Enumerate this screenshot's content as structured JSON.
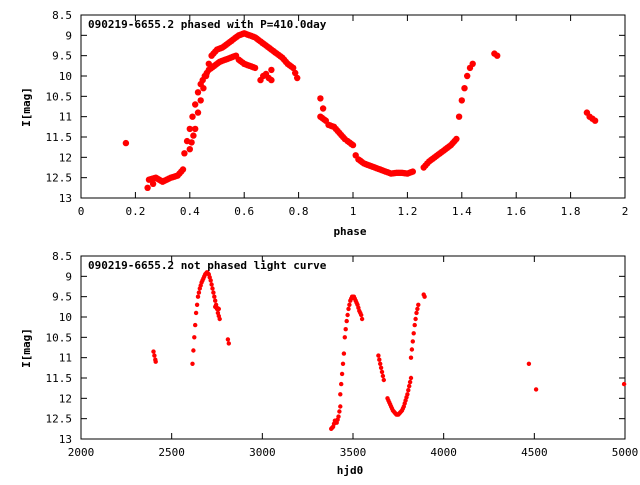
{
  "colors": {
    "points": "#ff0000",
    "axes": "#000000",
    "background": "#ffffff"
  },
  "chart_data": [
    {
      "type": "scatter",
      "title": "090219-6655.2 phased with P=410.0day",
      "xlabel": "phase",
      "ylabel": "I[mag]",
      "xlim": [
        0,
        2
      ],
      "ylim": [
        8.5,
        13
      ],
      "y_inverted": true,
      "grid": false,
      "xticks": [
        "0",
        "0.2",
        "0.4",
        "0.6",
        "0.8",
        "1",
        "1.2",
        "1.4",
        "1.6",
        "1.8",
        "2"
      ],
      "yticks": [
        "8.5",
        "9",
        "9.5",
        "10",
        "10.5",
        "11",
        "11.5",
        "12",
        "12.5",
        "13"
      ],
      "segments": [
        [
          [
            0.25,
            12.55
          ],
          [
            0.275,
            12.5
          ],
          [
            0.3,
            12.6
          ],
          [
            0.33,
            12.5
          ],
          [
            0.355,
            12.45
          ],
          [
            0.375,
            12.3
          ]
        ],
        [
          [
            0.38,
            11.9
          ],
          [
            0.39,
            11.6
          ],
          [
            0.4,
            11.3
          ],
          [
            0.41,
            11.0
          ],
          [
            0.42,
            10.7
          ],
          [
            0.43,
            10.4
          ],
          [
            0.44,
            10.2
          ],
          [
            0.455,
            10.0
          ],
          [
            0.47,
            9.85
          ],
          [
            0.49,
            9.75
          ],
          [
            0.51,
            9.65
          ],
          [
            0.53,
            9.6
          ],
          [
            0.55,
            9.55
          ],
          [
            0.57,
            9.5
          ]
        ],
        [
          [
            0.4,
            11.8
          ],
          [
            0.42,
            11.3
          ],
          [
            0.43,
            10.9
          ],
          [
            0.44,
            10.6
          ],
          [
            0.45,
            10.3
          ],
          [
            0.46,
            10.0
          ],
          [
            0.47,
            9.7
          ],
          [
            0.48,
            9.5
          ],
          [
            0.5,
            9.35
          ],
          [
            0.52,
            9.3
          ],
          [
            0.54,
            9.2
          ],
          [
            0.56,
            9.1
          ],
          [
            0.58,
            9.0
          ],
          [
            0.6,
            8.95
          ],
          [
            0.62,
            9.0
          ],
          [
            0.64,
            9.05
          ],
          [
            0.66,
            9.15
          ],
          [
            0.68,
            9.25
          ],
          [
            0.7,
            9.35
          ],
          [
            0.72,
            9.45
          ],
          [
            0.74,
            9.55
          ],
          [
            0.76,
            9.7
          ],
          [
            0.78,
            9.8
          ],
          [
            0.795,
            10.05
          ]
        ],
        [
          [
            0.58,
            9.6
          ],
          [
            0.6,
            9.7
          ],
          [
            0.62,
            9.75
          ],
          [
            0.64,
            9.8
          ]
        ],
        [
          [
            0.66,
            10.1
          ],
          [
            0.67,
            10.0
          ],
          [
            0.68,
            9.95
          ],
          [
            0.69,
            10.05
          ],
          [
            0.7,
            10.1
          ],
          [
            0.7,
            9.85
          ]
        ],
        [
          [
            0.88,
            10.55
          ],
          [
            0.89,
            10.8
          ],
          [
            0.88,
            11.0
          ],
          [
            0.9,
            11.1
          ],
          [
            0.91,
            11.2
          ],
          [
            0.93,
            11.25
          ],
          [
            0.95,
            11.4
          ],
          [
            0.97,
            11.55
          ],
          [
            0.98,
            11.6
          ],
          [
            1.0,
            11.7
          ]
        ],
        [
          [
            1.01,
            11.95
          ],
          [
            1.02,
            12.05
          ],
          [
            1.04,
            12.15
          ],
          [
            1.06,
            12.2
          ],
          [
            1.08,
            12.25
          ],
          [
            1.1,
            12.3
          ],
          [
            1.12,
            12.35
          ],
          [
            1.14,
            12.4
          ],
          [
            1.16,
            12.38
          ],
          [
            1.18,
            12.38
          ],
          [
            1.2,
            12.4
          ],
          [
            1.22,
            12.35
          ]
        ],
        [
          [
            1.26,
            12.25
          ],
          [
            1.28,
            12.1
          ],
          [
            1.3,
            12.0
          ],
          [
            1.32,
            11.9
          ],
          [
            1.34,
            11.8
          ],
          [
            1.36,
            11.7
          ],
          [
            1.38,
            11.55
          ]
        ],
        [
          [
            1.39,
            11.0
          ],
          [
            1.4,
            10.6
          ],
          [
            1.41,
            10.3
          ],
          [
            1.42,
            10.0
          ],
          [
            1.43,
            9.8
          ],
          [
            1.44,
            9.7
          ]
        ]
      ],
      "extra_points": [
        [
          0.165,
          11.65
        ],
        [
          0.245,
          12.75
        ],
        [
          0.265,
          12.65
        ],
        [
          1.52,
          9.45
        ],
        [
          1.53,
          9.5
        ],
        [
          1.86,
          10.9
        ],
        [
          1.87,
          11.0
        ],
        [
          1.88,
          11.05
        ],
        [
          1.89,
          11.1
        ]
      ]
    },
    {
      "type": "scatter",
      "title": "090219-6655.2 not phased light curve",
      "xlabel": "hjd0",
      "ylabel": "I[mag]",
      "xlim": [
        2000,
        5000
      ],
      "ylim": [
        8.5,
        13
      ],
      "y_inverted": true,
      "grid": false,
      "xticks": [
        "2000",
        "2500",
        "3000",
        "3500",
        "4000",
        "4500",
        "5000"
      ],
      "yticks": [
        "8.5",
        "9",
        "9.5",
        "10",
        "10.5",
        "11",
        "11.5",
        "12",
        "12.5",
        "13"
      ],
      "segments": [
        [
          [
            2400,
            10.85
          ],
          [
            2405,
            10.95
          ],
          [
            2410,
            11.05
          ],
          [
            2412,
            11.1
          ]
        ],
        [
          [
            2615,
            11.15
          ],
          [
            2625,
            10.5
          ],
          [
            2635,
            9.9
          ],
          [
            2645,
            9.5
          ],
          [
            2655,
            9.3
          ],
          [
            2665,
            9.15
          ],
          [
            2675,
            9.05
          ],
          [
            2685,
            8.95
          ],
          [
            2695,
            8.9
          ],
          [
            2705,
            8.95
          ],
          [
            2715,
            9.1
          ],
          [
            2725,
            9.3
          ],
          [
            2735,
            9.5
          ],
          [
            2745,
            9.7
          ],
          [
            2755,
            9.9
          ],
          [
            2765,
            10.05
          ]
        ],
        [
          [
            2740,
            9.75
          ],
          [
            2760,
            9.8
          ]
        ],
        [
          [
            2810,
            10.55
          ],
          [
            2815,
            10.65
          ]
        ],
        [
          [
            3380,
            12.75
          ],
          [
            3390,
            12.7
          ],
          [
            3400,
            12.55
          ],
          [
            3410,
            12.6
          ],
          [
            3420,
            12.45
          ],
          [
            3430,
            12.2
          ]
        ],
        [
          [
            3430,
            11.9
          ],
          [
            3440,
            11.4
          ],
          [
            3450,
            10.9
          ],
          [
            3455,
            10.5
          ],
          [
            3465,
            10.1
          ],
          [
            3475,
            9.8
          ],
          [
            3485,
            9.6
          ],
          [
            3495,
            9.5
          ],
          [
            3505,
            9.5
          ],
          [
            3515,
            9.6
          ],
          [
            3525,
            9.7
          ],
          [
            3535,
            9.85
          ],
          [
            3545,
            9.95
          ],
          [
            3550,
            10.05
          ]
        ],
        [
          [
            3640,
            10.95
          ],
          [
            3650,
            11.15
          ],
          [
            3660,
            11.35
          ],
          [
            3670,
            11.55
          ]
        ],
        [
          [
            3690,
            12.0
          ],
          [
            3700,
            12.1
          ],
          [
            3710,
            12.2
          ],
          [
            3720,
            12.3
          ],
          [
            3730,
            12.35
          ],
          [
            3740,
            12.4
          ],
          [
            3750,
            12.4
          ],
          [
            3760,
            12.35
          ],
          [
            3770,
            12.3
          ],
          [
            3780,
            12.2
          ],
          [
            3790,
            12.05
          ],
          [
            3800,
            11.9
          ],
          [
            3810,
            11.7
          ],
          [
            3820,
            11.5
          ]
        ],
        [
          [
            3820,
            11.0
          ],
          [
            3830,
            10.6
          ],
          [
            3840,
            10.2
          ],
          [
            3850,
            9.9
          ],
          [
            3860,
            9.7
          ]
        ],
        [
          [
            3890,
            9.45
          ],
          [
            3895,
            9.5
          ]
        ]
      ],
      "extra_points": [
        [
          4470,
          11.15
        ],
        [
          4510,
          11.78
        ],
        [
          4995,
          11.65
        ]
      ]
    }
  ]
}
